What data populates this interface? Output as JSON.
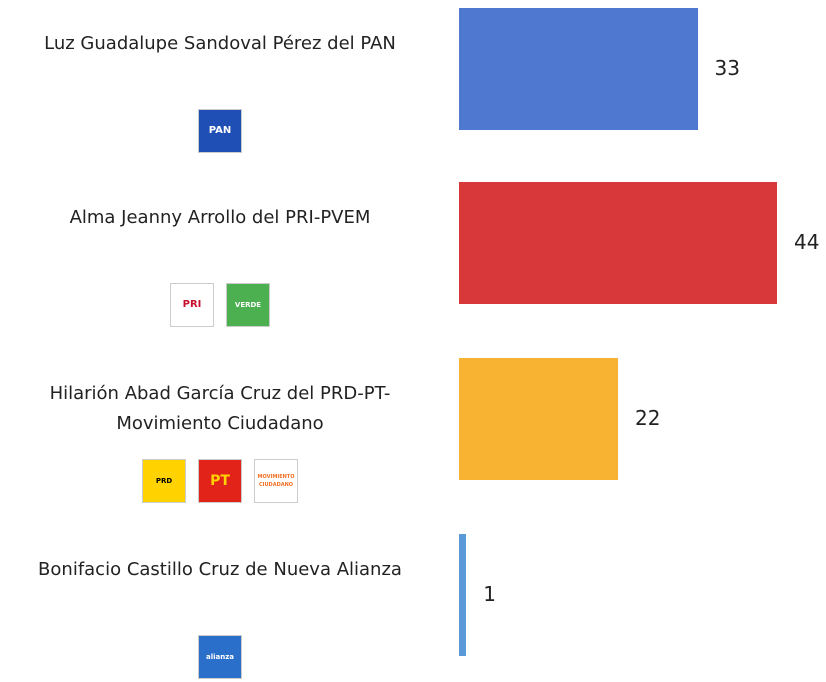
{
  "chart_data": {
    "type": "bar",
    "orientation": "horizontal",
    "categories": [
      "Luz Guadalupe Sandoval Pérez del PAN",
      "Alma Jeanny Arrollo del PRI-PVEM",
      "Hilarión Abad García Cruz del PRD-PT-Movimiento Ciudadano",
      "Bonifacio Castillo Cruz de Nueva Alianza"
    ],
    "values": [
      33,
      44,
      22,
      1
    ],
    "colors": [
      "#4f79d1",
      "#d9383a",
      "#f8b333",
      "#5b9ad8"
    ],
    "logos": [
      [
        "PAN"
      ],
      [
        "PRI",
        "VERDE"
      ],
      [
        "PRD",
        "PT",
        "MOVIMIENTO CIUDADANO"
      ],
      [
        "alianza"
      ]
    ]
  }
}
